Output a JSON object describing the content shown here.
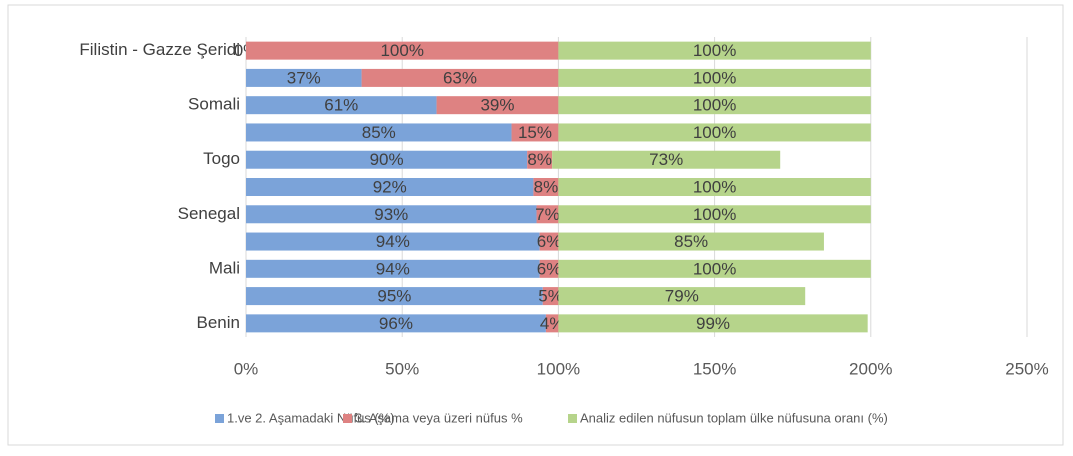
{
  "chart_data": {
    "type": "stacked-bar-horizontal",
    "categories": [
      "Filistin - Gazze Şeridi",
      null,
      "Somali",
      null,
      "Togo",
      null,
      "Senegal",
      null,
      "Mali",
      null,
      "Benin"
    ],
    "series": [
      {
        "name": "1.ve 2. Aşamadaki Nüfus  (%)",
        "color": "#7ba3d9",
        "values": [
          0,
          37,
          61,
          85,
          90,
          92,
          93,
          94,
          94,
          95,
          96
        ],
        "value_labels": [
          "0%",
          "37%",
          "61%",
          "85%",
          "90%",
          "92%",
          "93%",
          "94%",
          "94%",
          "95%",
          "96%"
        ]
      },
      {
        "name": "3. Aşama veya üzeri nüfus %",
        "color": "#de8282",
        "values": [
          100,
          63,
          39,
          15,
          8,
          8,
          7,
          6,
          6,
          5,
          4
        ],
        "value_labels": [
          "100%",
          "63%",
          "39%",
          "15%",
          "8%",
          "8%",
          "7%",
          "6%",
          "6%",
          "5%",
          "4%"
        ]
      },
      {
        "name": "Analiz edilen nüfusun toplam ülke nüfusuna oranı (%)",
        "color": "#b6d48b",
        "values": [
          100,
          100,
          100,
          100,
          73,
          100,
          100,
          85,
          100,
          79,
          99
        ],
        "value_labels": [
          "100%",
          "100%",
          "100%",
          "100%",
          "73%",
          "100%",
          "100%",
          "85%",
          "100%",
          "79%",
          "99%"
        ]
      }
    ],
    "xlim": [
      0,
      250
    ],
    "xticks": [
      {
        "value": 0,
        "label": "0%"
      },
      {
        "value": 50,
        "label": "50%"
      },
      {
        "value": 100,
        "label": "100%"
      },
      {
        "value": 150,
        "label": "150%"
      },
      {
        "value": 200,
        "label": "200%"
      },
      {
        "value": 250,
        "label": "250%"
      }
    ],
    "grid": true,
    "legend": "bottom"
  }
}
